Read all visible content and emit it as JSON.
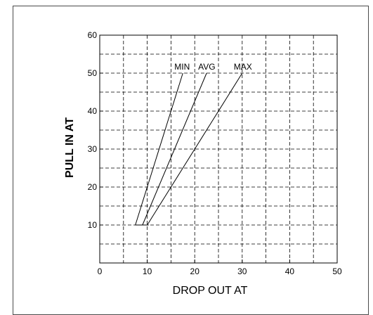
{
  "chart_data": {
    "type": "line",
    "xlabel": "DROP OUT AT",
    "ylabel": "PULL IN AT",
    "xlim": [
      0,
      50
    ],
    "ylim": [
      0,
      60
    ],
    "x_ticks": [
      0,
      10,
      20,
      30,
      40,
      50
    ],
    "y_ticks": [
      10,
      20,
      30,
      40,
      50,
      60
    ],
    "x_tick_labels": [
      "0",
      "10",
      "20",
      "30",
      "40",
      "50"
    ],
    "y_tick_labels": [
      "10",
      "20",
      "30",
      "40",
      "50",
      "60"
    ],
    "grid": true,
    "grid_style": "dashed",
    "grid_x_step": 5,
    "grid_y_step": 5,
    "series": [
      {
        "name": "MIN",
        "x": [
          7.5,
          17.5
        ],
        "y": [
          10,
          50
        ]
      },
      {
        "name": "AVG",
        "x": [
          9,
          22.5
        ],
        "y": [
          10,
          50
        ]
      },
      {
        "name": "MAX",
        "x": [
          10,
          30
        ],
        "y": [
          10,
          50
        ]
      }
    ],
    "colors": {
      "line": "#000000",
      "grid": "#000000",
      "frame": "#4a4a4a"
    }
  }
}
